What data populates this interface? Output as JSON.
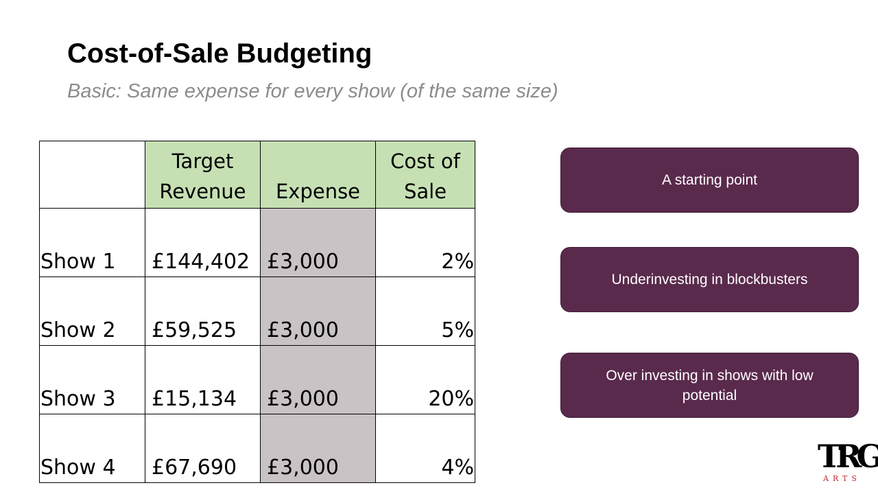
{
  "slide": {
    "title": "Cost-of-Sale Budgeting",
    "subtitle": "Basic: Same expense for every show (of the same size)"
  },
  "table": {
    "headers": [
      "",
      "Target Revenue",
      "Expense",
      "Cost of Sale"
    ],
    "rows": [
      {
        "show": "Show 1",
        "target_revenue": "£144,402",
        "expense": "£3,000",
        "cost_of_sale": "2%"
      },
      {
        "show": "Show 2",
        "target_revenue": "£59,525",
        "expense": "£3,000",
        "cost_of_sale": "5%"
      },
      {
        "show": "Show 3",
        "target_revenue": "£15,134",
        "expense": "£3,000",
        "cost_of_sale": "20%"
      },
      {
        "show": "Show 4",
        "target_revenue": "£67,690",
        "expense": "£3,000",
        "cost_of_sale": "4%"
      }
    ],
    "colors": {
      "header_fill": "#c6e0b4",
      "expense_fill": "#c9c3c6"
    }
  },
  "callouts": [
    {
      "text": "A starting point"
    },
    {
      "text": "Underinvesting in blockbusters"
    },
    {
      "text": "Over investing in shows with low potential"
    }
  ],
  "callout_color": "#5a2a4d",
  "logo": {
    "letters": "TRG",
    "sub": "ARTS",
    "accent_color": "#c0272d"
  }
}
